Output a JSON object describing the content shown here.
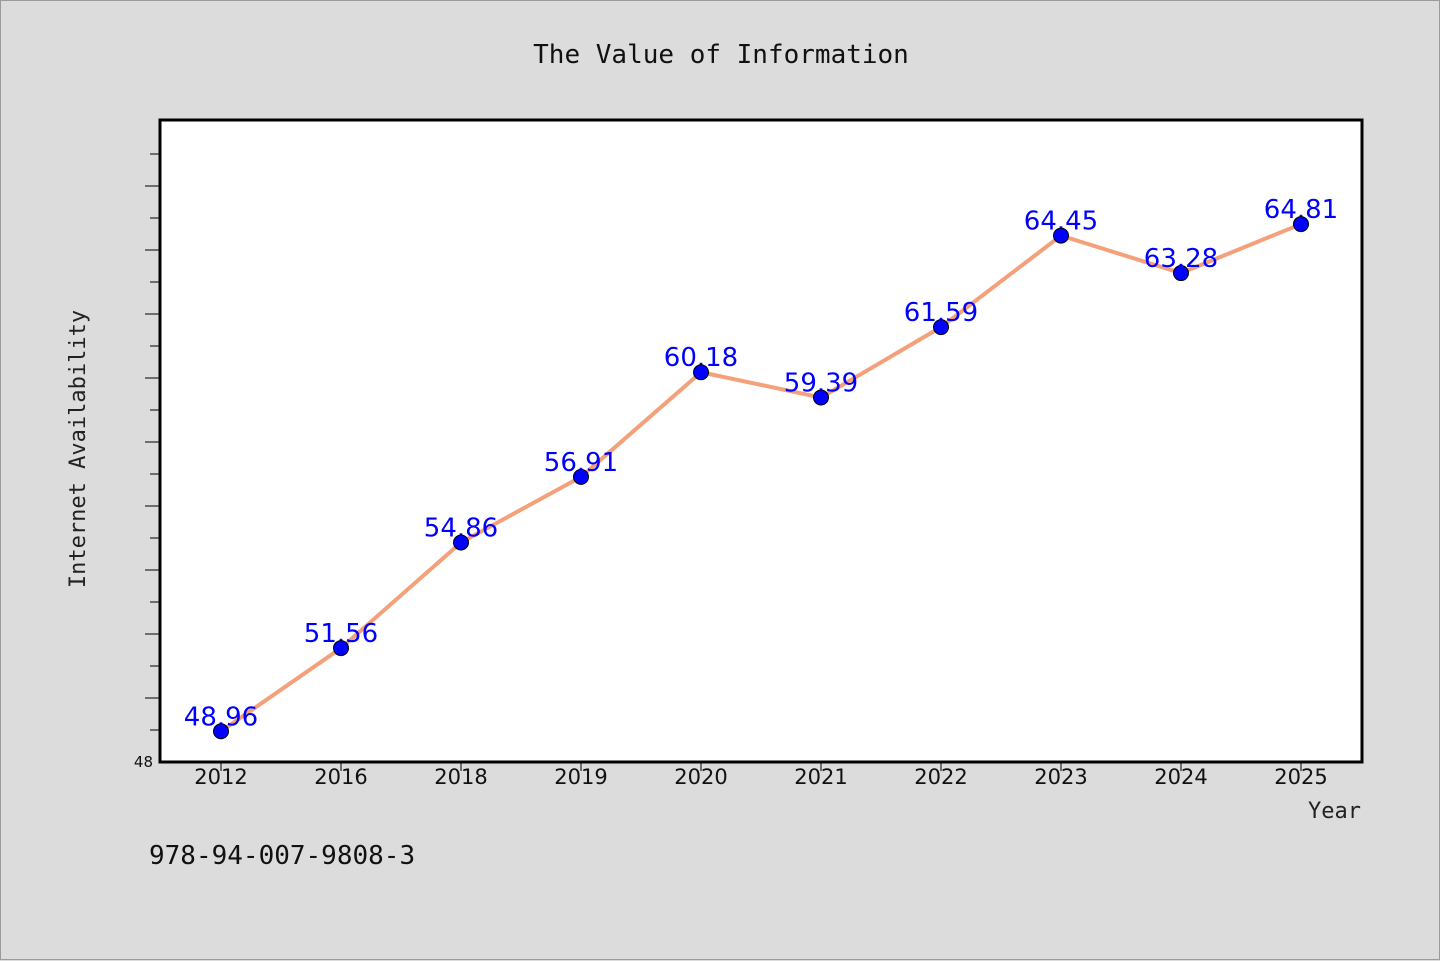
{
  "chart_data": {
    "type": "line",
    "title": "The Value of Information",
    "xlabel": "Year",
    "ylabel": "Internet Availability",
    "categories": [
      "2012",
      "2016",
      "2018",
      "2019",
      "2020",
      "2021",
      "2022",
      "2023",
      "2024",
      "2025"
    ],
    "series": [
      {
        "values": [
          48.96,
          51.56,
          54.86,
          56.91,
          60.18,
          59.39,
          61.59,
          64.45,
          63.28,
          64.81
        ],
        "line_color": "#f4a07a",
        "marker_color": "#0000ff",
        "label_color": "#0000ff"
      }
    ],
    "ylim": [
      48,
      68
    ],
    "ytick_labels": [
      "48"
    ],
    "grid": false,
    "legend": "none"
  },
  "footnote": "978-94-007-9808-3",
  "colors": {
    "background": "#dcdcdc",
    "plot_background": "#ffffff",
    "line": "#f4a07a",
    "marker": "#0000ff",
    "data_label": "#0000ff"
  }
}
